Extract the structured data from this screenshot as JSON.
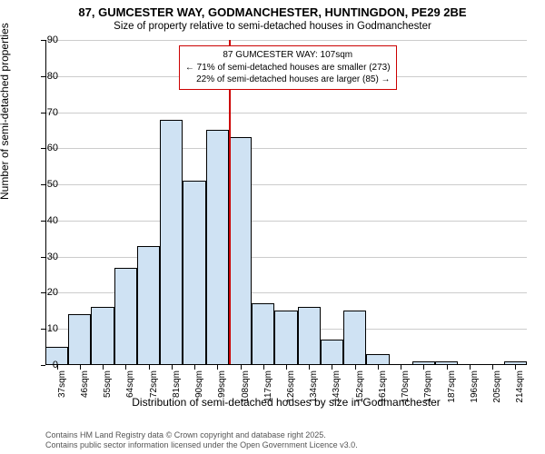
{
  "title": "87, GUMCESTER WAY, GODMANCHESTER, HUNTINGDON, PE29 2BE",
  "subtitle": "Size of property relative to semi-detached houses in Godmanchester",
  "y_axis_label": "Number of semi-detached properties",
  "x_axis_label": "Distribution of semi-detached houses by size in Godmanchester",
  "footer_line1": "Contains HM Land Registry data © Crown copyright and database right 2025.",
  "footer_line2": "Contains public sector information licensed under the Open Government Licence v3.0.",
  "chart": {
    "type": "histogram",
    "ylim": [
      0,
      90
    ],
    "ytick_step": 10,
    "background_color": "#ffffff",
    "grid_color": "#cccccc",
    "bar_fill": "#cfe2f3",
    "bar_stroke": "#000000",
    "reference_line_x": 108,
    "reference_line_color": "#cc0000",
    "annotation_border": "#cc0000",
    "x_labels": [
      "37sqm",
      "46sqm",
      "55sqm",
      "64sqm",
      "72sqm",
      "81sqm",
      "90sqm",
      "99sqm",
      "108sqm",
      "117sqm",
      "126sqm",
      "134sqm",
      "143sqm",
      "152sqm",
      "161sqm",
      "170sqm",
      "179sqm",
      "187sqm",
      "196sqm",
      "205sqm",
      "214sqm"
    ],
    "values": [
      5,
      14,
      16,
      27,
      33,
      68,
      51,
      65,
      63,
      17,
      15,
      16,
      7,
      15,
      3,
      0,
      1,
      1,
      0,
      0,
      1
    ],
    "bar_count": 21,
    "annotation": {
      "line1": "87 GUMCESTER WAY: 107sqm",
      "line2": "← 71% of semi-detached houses are smaller (273)",
      "line3": "22% of semi-detached houses are larger (85) →"
    },
    "title_fontsize": 13,
    "subtitle_fontsize": 11.5,
    "label_fontsize": 12,
    "tick_fontsize": 11
  }
}
